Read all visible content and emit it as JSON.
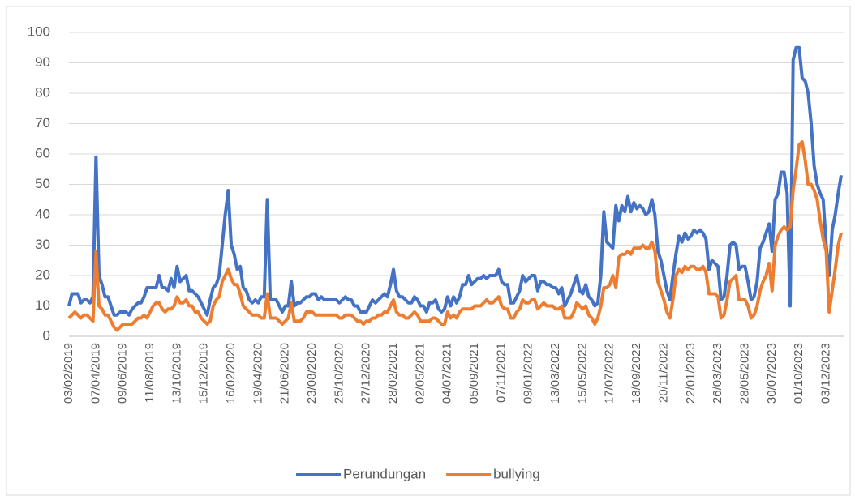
{
  "chart_data": {
    "type": "line",
    "categories": [
      "03/02/2019",
      null,
      null,
      null,
      null,
      null,
      null,
      null,
      null,
      "07/04/2019",
      null,
      null,
      null,
      null,
      null,
      null,
      null,
      null,
      "09/06/2019",
      null,
      null,
      null,
      null,
      null,
      null,
      null,
      null,
      "11/08/2019",
      null,
      null,
      null,
      null,
      null,
      null,
      null,
      null,
      "13/10/2019",
      null,
      null,
      null,
      null,
      null,
      null,
      null,
      null,
      "15/12/2019",
      null,
      null,
      null,
      null,
      null,
      null,
      null,
      null,
      "16/02/2020",
      null,
      null,
      null,
      null,
      null,
      null,
      null,
      null,
      "19/04/2020",
      null,
      null,
      null,
      null,
      null,
      null,
      null,
      null,
      "21/06/2020",
      null,
      null,
      null,
      null,
      null,
      null,
      null,
      null,
      "23/08/2020",
      null,
      null,
      null,
      null,
      null,
      null,
      null,
      null,
      "25/10/2020",
      null,
      null,
      null,
      null,
      null,
      null,
      null,
      null,
      "27/12/2020",
      null,
      null,
      null,
      null,
      null,
      null,
      null,
      null,
      "28/02/2021",
      null,
      null,
      null,
      null,
      null,
      null,
      null,
      null,
      "02/05/2021",
      null,
      null,
      null,
      null,
      null,
      null,
      null,
      null,
      "04/07/2021",
      null,
      null,
      null,
      null,
      null,
      null,
      null,
      null,
      "05/09/2021",
      null,
      null,
      null,
      null,
      null,
      null,
      null,
      null,
      "07/11/2021",
      null,
      null,
      null,
      null,
      null,
      null,
      null,
      null,
      "09/01/2022",
      null,
      null,
      null,
      null,
      null,
      null,
      null,
      null,
      "13/03/2022",
      null,
      null,
      null,
      null,
      null,
      null,
      null,
      null,
      "15/05/2022",
      null,
      null,
      null,
      null,
      null,
      null,
      null,
      null,
      "17/07/2022",
      null,
      null,
      null,
      null,
      null,
      null,
      null,
      null,
      "18/09/2022",
      null,
      null,
      null,
      null,
      null,
      null,
      null,
      null,
      "20/11/2022",
      null,
      null,
      null,
      null,
      null,
      null,
      null,
      null,
      "22/01/2023",
      null,
      null,
      null,
      null,
      null,
      null,
      null,
      null,
      "26/03/2023",
      null,
      null,
      null,
      null,
      null,
      null,
      null,
      null,
      "28/05/2023",
      null,
      null,
      null,
      null,
      null,
      null,
      null,
      null,
      "30/07/2023",
      null,
      null,
      null,
      null,
      null,
      null,
      null,
      null,
      "01/10/2023",
      null,
      null,
      null,
      null,
      null,
      null,
      null,
      null,
      "03/12/2023",
      null,
      null,
      null,
      null,
      null
    ],
    "series": [
      {
        "name": "Perundungan",
        "color": "#4472c4",
        "values": [
          10,
          14,
          14,
          14,
          11,
          12,
          12,
          11,
          13,
          59,
          20,
          17,
          13,
          13,
          10,
          7,
          7,
          8,
          8,
          8,
          7,
          9,
          10,
          11,
          11,
          13,
          16,
          16,
          16,
          16,
          20,
          16,
          16,
          15,
          19,
          16,
          23,
          18,
          19,
          20,
          15,
          15,
          14,
          13,
          11,
          9,
          7,
          12,
          16,
          17,
          20,
          30,
          40,
          48,
          30,
          27,
          22,
          23,
          16,
          15,
          12,
          11,
          12,
          11,
          13,
          13,
          45,
          12,
          12,
          12,
          10,
          8,
          10,
          10,
          18,
          10,
          11,
          11,
          12,
          13,
          13,
          14,
          14,
          12,
          13,
          12,
          12,
          12,
          12,
          12,
          11,
          12,
          13,
          12,
          12,
          10,
          10,
          8,
          8,
          8,
          10,
          12,
          11,
          12,
          13,
          14,
          13,
          17,
          22,
          15,
          13,
          13,
          12,
          11,
          11,
          13,
          12,
          10,
          10,
          8,
          11,
          11,
          12,
          9,
          8,
          9,
          13,
          10,
          13,
          11,
          13,
          17,
          17,
          20,
          17,
          18,
          19,
          19,
          20,
          19,
          20,
          20,
          20,
          22,
          18,
          17,
          17,
          11,
          11,
          13,
          15,
          20,
          18,
          19,
          20,
          20,
          15,
          18,
          18,
          17,
          17,
          16,
          16,
          14,
          16,
          10,
          12,
          14,
          17,
          20,
          15,
          14,
          17,
          13,
          12,
          10,
          11,
          20,
          41,
          31,
          30,
          29,
          43,
          38,
          43,
          41,
          46,
          41,
          44,
          42,
          43,
          42,
          40,
          41,
          45,
          40,
          28,
          25,
          20,
          15,
          12,
          20,
          27,
          33,
          31,
          34,
          32,
          33,
          35,
          34,
          35,
          34,
          32,
          22,
          25,
          24,
          23,
          12,
          13,
          20,
          30,
          31,
          30,
          22,
          23,
          23,
          18,
          12,
          13,
          18,
          29,
          31,
          34,
          37,
          28,
          45,
          47,
          54,
          54,
          47,
          10,
          91,
          95,
          95,
          85,
          84,
          80,
          70,
          56,
          50,
          47,
          45,
          30,
          20,
          35,
          40,
          47,
          53
        ]
      },
      {
        "name": "bullying",
        "color": "#ed7d31",
        "values": [
          6,
          7,
          8,
          7,
          6,
          7,
          7,
          6,
          5,
          28,
          10,
          9,
          7,
          7,
          5,
          3,
          2,
          3,
          4,
          4,
          4,
          4,
          5,
          6,
          6,
          7,
          6,
          8,
          10,
          11,
          11,
          9,
          8,
          9,
          9,
          10,
          13,
          11,
          11,
          12,
          10,
          10,
          8,
          8,
          6,
          5,
          4,
          5,
          10,
          12,
          13,
          18,
          20,
          22,
          19,
          17,
          17,
          14,
          10,
          9,
          8,
          7,
          7,
          7,
          6,
          6,
          14,
          6,
          6,
          6,
          5,
          4,
          5,
          6,
          11,
          5,
          5,
          5,
          6,
          8,
          8,
          8,
          7,
          7,
          7,
          7,
          7,
          7,
          7,
          7,
          6,
          6,
          7,
          7,
          7,
          6,
          5,
          5,
          4,
          5,
          5,
          6,
          6,
          7,
          7,
          8,
          8,
          10,
          12,
          8,
          7,
          7,
          6,
          6,
          7,
          8,
          7,
          5,
          5,
          5,
          5,
          6,
          6,
          5,
          4,
          4,
          8,
          6,
          7,
          6,
          8,
          9,
          9,
          9,
          9,
          10,
          10,
          10,
          11,
          12,
          11,
          11,
          12,
          13,
          10,
          9,
          9,
          6,
          6,
          8,
          9,
          12,
          11,
          11,
          12,
          12,
          9,
          10,
          11,
          10,
          10,
          10,
          9,
          9,
          10,
          6,
          6,
          6,
          8,
          11,
          10,
          9,
          10,
          7,
          6,
          4,
          6,
          10,
          16,
          16,
          17,
          20,
          16,
          26,
          27,
          27,
          28,
          27,
          29,
          29,
          29,
          30,
          29,
          29,
          31,
          28,
          18,
          15,
          12,
          8,
          6,
          12,
          20,
          22,
          21,
          23,
          22,
          23,
          23,
          22,
          22,
          23,
          21,
          14,
          14,
          14,
          13,
          6,
          7,
          12,
          18,
          19,
          20,
          12,
          12,
          12,
          10,
          6,
          7,
          10,
          15,
          18,
          20,
          24,
          15,
          30,
          33,
          35,
          36,
          35,
          36,
          48,
          55,
          63,
          64,
          58,
          50,
          50,
          48,
          45,
          38,
          32,
          28,
          8,
          15,
          22,
          30,
          34
        ]
      }
    ],
    "ylim": [
      0,
      100
    ],
    "yticks": [
      0,
      10,
      20,
      30,
      40,
      50,
      60,
      70,
      80,
      90,
      100
    ],
    "grid": true,
    "legend": "bottom"
  }
}
